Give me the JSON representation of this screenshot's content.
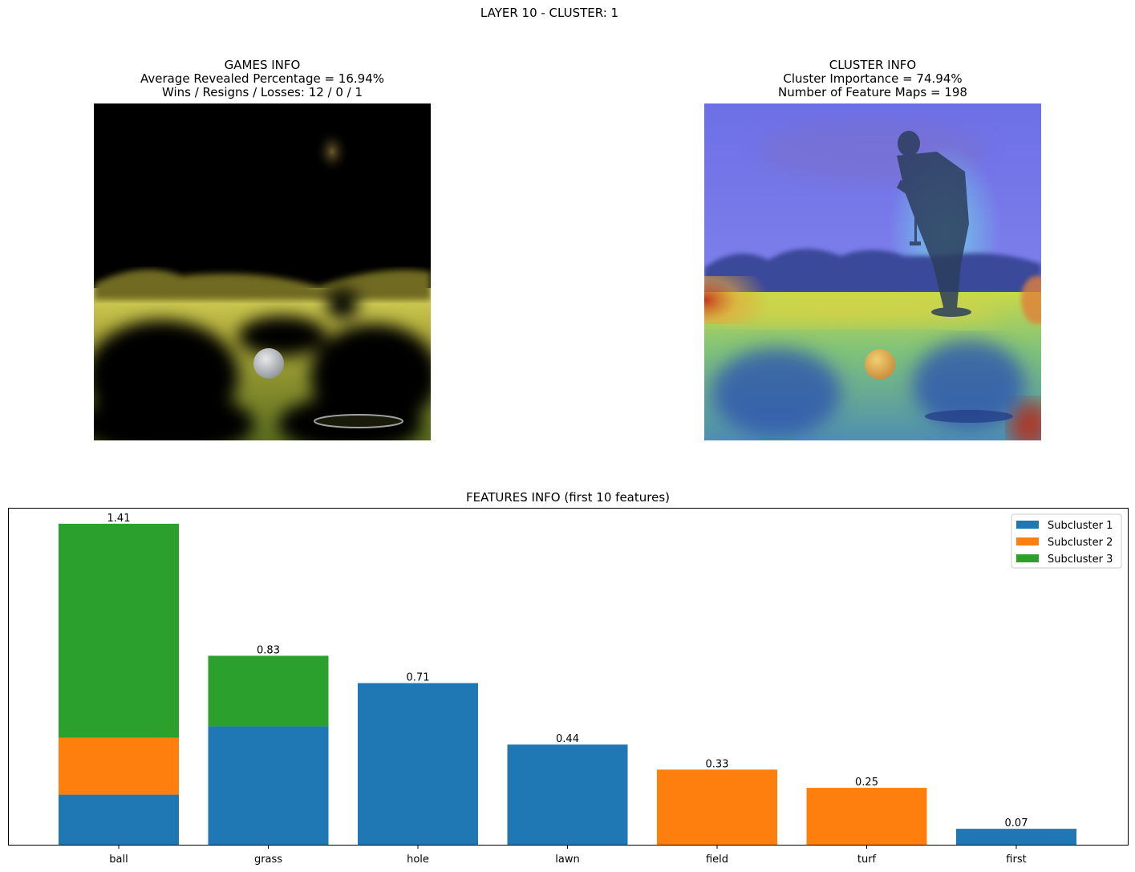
{
  "figure": {
    "suptitle": "LAYER 10 - CLUSTER: 1"
  },
  "games_panel": {
    "title_lines": [
      "GAMES INFO",
      "Average Revealed Percentage = 16.94%",
      "Wins / Resigns / Losses: 12 / 0 / 1"
    ],
    "revealed_percentage": 16.94,
    "wins": 12,
    "resigns": 0,
    "losses": 1
  },
  "cluster_panel": {
    "title_lines": [
      "CLUSTER INFO",
      "Cluster Importance = 74.94%",
      "Number of Feature Maps = 198"
    ],
    "cluster_importance": 74.94,
    "feature_maps": 198
  },
  "chart_data": {
    "type": "bar",
    "stacked": true,
    "title": "FEATURES INFO (first 10 features)",
    "categories": [
      "ball",
      "grass",
      "hole",
      "lawn",
      "field",
      "turf",
      "first"
    ],
    "series": [
      {
        "name": "Subcluster 1",
        "color": "#1f77b4",
        "values": [
          0.22,
          0.52,
          0.71,
          0.44,
          0,
          0,
          0.07
        ]
      },
      {
        "name": "Subcluster 2",
        "color": "#ff7f0e",
        "values": [
          0.25,
          0,
          0,
          0,
          0.33,
          0.25,
          0
        ]
      },
      {
        "name": "Subcluster 3",
        "color": "#2ca02c",
        "values": [
          0.94,
          0.31,
          0,
          0,
          0,
          0,
          0
        ]
      }
    ],
    "totals": [
      1.41,
      0.83,
      0.71,
      0.44,
      0.33,
      0.25,
      0.07
    ],
    "total_labels": [
      "1.41",
      "0.83",
      "0.71",
      "0.44",
      "0.33",
      "0.25",
      "0.07"
    ],
    "ylim": [
      0,
      1.48
    ],
    "y_ticks_visible": false,
    "grid": false,
    "legend_position": "top-right"
  }
}
